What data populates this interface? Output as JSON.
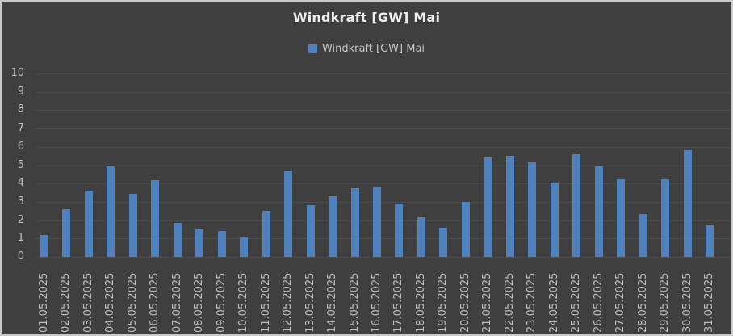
{
  "window": {
    "background": "#3f3f3f",
    "border_color": "#c9c9c9"
  },
  "chart_data": {
    "type": "bar",
    "title": "Windkraft [GW] Mai",
    "legend": [
      "Windkraft [GW] Mai"
    ],
    "legend_position": "top-center",
    "bar_color": "#4e81bd",
    "grid": true,
    "gridline_color": "#4c4c4c",
    "ylim": [
      0,
      10
    ],
    "yticks": [
      0,
      1,
      2,
      3,
      4,
      5,
      6,
      7,
      8,
      9,
      10
    ],
    "xlabel": "",
    "ylabel": "",
    "categories": [
      "01.05.2025",
      "02.05.2025",
      "03.05.2025",
      "04.05.2025",
      "05.05.2025",
      "06.05.2025",
      "07.05.2025",
      "08.05.2025",
      "09.05.2025",
      "10.05.2025",
      "11.05.2025",
      "12.05.2025",
      "13.05.2025",
      "14.05.2025",
      "15.05.2025",
      "16.05.2025",
      "17.05.2025",
      "18.05.2025",
      "19.05.2025",
      "20.05.2025",
      "21.05.2025",
      "22.05.2025",
      "23.05.2025",
      "24.05.2025",
      "25.05.2025",
      "26.05.2025",
      "27.05.2025",
      "28.05.2025",
      "29.05.2025",
      "30.05.2025",
      "31.05.2025"
    ],
    "values": [
      1.2,
      2.6,
      3.6,
      4.95,
      3.45,
      4.2,
      1.85,
      1.5,
      1.4,
      1.05,
      2.5,
      4.65,
      2.8,
      3.3,
      3.75,
      3.8,
      2.9,
      2.15,
      1.6,
      3.0,
      5.4,
      5.5,
      5.15,
      4.05,
      5.6,
      4.95,
      4.25,
      2.35,
      4.25,
      5.8,
      1.7
    ]
  }
}
